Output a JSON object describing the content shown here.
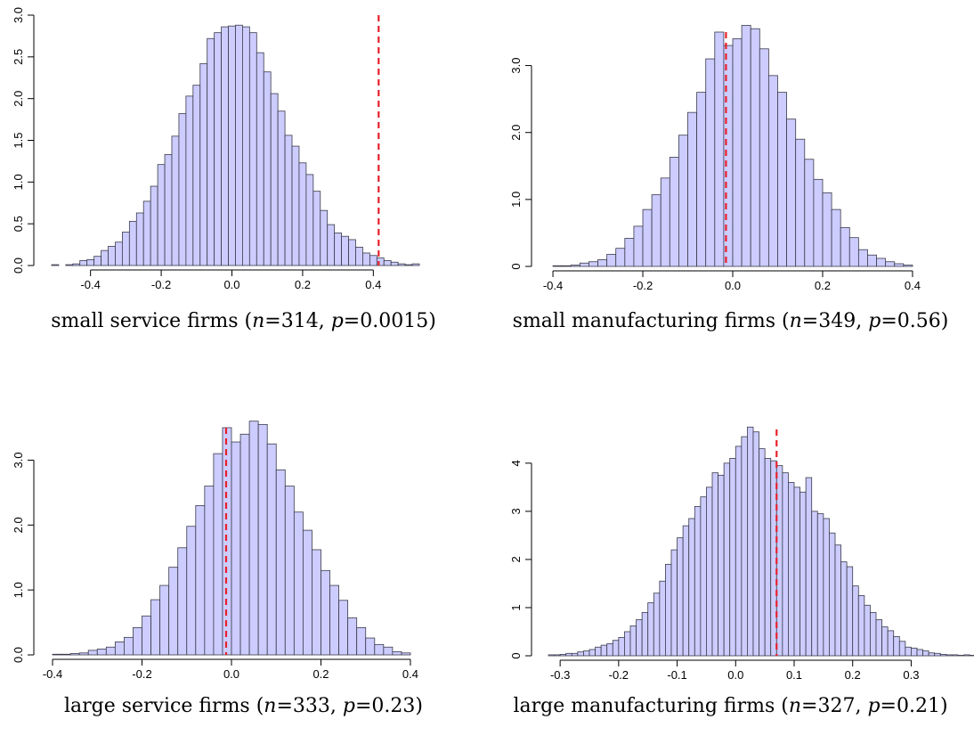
{
  "chart_data": [
    {
      "type": "bar",
      "caption": {
        "prefix": "small service firms (",
        "n_var": "n",
        "n_eq": "=314, ",
        "p_var": "p",
        "p_eq": "=0.0015)"
      },
      "bin_start": -0.51,
      "bin_width": 0.02,
      "densities": [
        0.01,
        0.0,
        0.01,
        0.02,
        0.06,
        0.07,
        0.11,
        0.18,
        0.23,
        0.28,
        0.4,
        0.53,
        0.63,
        0.77,
        0.95,
        1.21,
        1.33,
        1.55,
        1.82,
        2.03,
        2.16,
        2.42,
        2.72,
        2.79,
        2.86,
        2.87,
        2.88,
        2.86,
        2.79,
        2.55,
        2.32,
        2.06,
        1.85,
        1.56,
        1.43,
        1.23,
        1.09,
        0.89,
        0.66,
        0.49,
        0.39,
        0.35,
        0.31,
        0.22,
        0.15,
        0.12,
        0.09,
        0.06,
        0.04,
        0.02,
        0.01,
        0.02
      ],
      "reference_x": 0.415,
      "xlim": [
        -0.52,
        0.52
      ],
      "ylim": [
        0,
        3.0
      ],
      "x_ticks": [
        -0.4,
        -0.2,
        0.0,
        0.2,
        0.4
      ],
      "x_tick_labels": [
        "-0.4",
        "-0.2",
        "0.0",
        "0.2",
        "0.4"
      ],
      "y_ticks": [
        0,
        0.5,
        1.0,
        1.5,
        2.0,
        2.5,
        3.0
      ],
      "y_tick_labels": [
        "0.0",
        "0.5",
        "1.0",
        "1.5",
        "2.0",
        "2.5",
        "3.0"
      ]
    },
    {
      "type": "bar",
      "caption": {
        "prefix": "small manufacturing firms (",
        "n_var": "n",
        "n_eq": "=349, ",
        "p_var": "p",
        "p_eq": "=0.56)"
      },
      "bin_start": -0.4,
      "bin_width": 0.02,
      "densities": [
        0.01,
        0.01,
        0.02,
        0.05,
        0.07,
        0.1,
        0.18,
        0.27,
        0.42,
        0.6,
        0.85,
        1.07,
        1.32,
        1.63,
        1.96,
        2.3,
        2.6,
        3.1,
        3.5,
        3.3,
        3.4,
        3.6,
        3.55,
        3.25,
        2.85,
        2.6,
        2.2,
        1.9,
        1.6,
        1.3,
        1.1,
        0.85,
        0.58,
        0.43,
        0.25,
        0.17,
        0.12,
        0.07,
        0.04,
        0.02
      ],
      "reference_x": -0.015,
      "xlim": [
        -0.41,
        0.41
      ],
      "ylim": [
        0,
        3.5
      ],
      "x_ticks": [
        -0.4,
        -0.2,
        0.0,
        0.2,
        0.4
      ],
      "x_tick_labels": [
        "-0.4",
        "-0.2",
        "0.0",
        "0.2",
        "0.4"
      ],
      "y_ticks": [
        0,
        1.0,
        2.0,
        3.0
      ],
      "y_tick_labels": [
        "0",
        "1.0",
        "2.0",
        "3.0"
      ]
    },
    {
      "type": "bar",
      "caption": {
        "prefix": "large service firms (",
        "n_var": "n",
        "n_eq": "=333, ",
        "p_var": "p",
        "p_eq": "=0.23)"
      },
      "bin_start": -0.4,
      "bin_width": 0.02,
      "densities": [
        0.01,
        0.01,
        0.02,
        0.03,
        0.07,
        0.09,
        0.12,
        0.2,
        0.27,
        0.42,
        0.6,
        0.85,
        1.07,
        1.35,
        1.65,
        1.98,
        2.3,
        2.6,
        3.1,
        3.5,
        3.28,
        3.4,
        3.6,
        3.55,
        3.25,
        2.85,
        2.6,
        2.2,
        1.92,
        1.62,
        1.3,
        1.07,
        0.84,
        0.57,
        0.42,
        0.26,
        0.16,
        0.12,
        0.05,
        0.03
      ],
      "reference_x": -0.012,
      "xlim": [
        -0.41,
        0.41
      ],
      "ylim": [
        0,
        3.5
      ],
      "x_ticks": [
        -0.4,
        -0.2,
        0.0,
        0.2,
        0.4
      ],
      "x_tick_labels": [
        "-0.4",
        "-0.2",
        "0.0",
        "0.2",
        "0.4"
      ],
      "y_ticks": [
        0,
        1.0,
        2.0,
        3.0
      ],
      "y_tick_labels": [
        "0.0",
        "1.0",
        "2.0",
        "3.0"
      ]
    },
    {
      "type": "bar",
      "caption": {
        "prefix": "large manufacturing firms (",
        "n_var": "n",
        "n_eq": "=327, ",
        "p_var": "p",
        "p_eq": "=0.21)"
      },
      "bin_start": -0.32,
      "bin_width": 0.01,
      "densities": [
        0.02,
        0.02,
        0.03,
        0.05,
        0.05,
        0.08,
        0.1,
        0.13,
        0.18,
        0.22,
        0.25,
        0.32,
        0.38,
        0.5,
        0.62,
        0.75,
        0.9,
        1.1,
        1.3,
        1.55,
        1.9,
        2.2,
        2.45,
        2.7,
        2.85,
        3.1,
        3.3,
        3.5,
        3.8,
        3.75,
        4.0,
        4.1,
        4.35,
        4.55,
        4.75,
        4.65,
        4.3,
        4.1,
        4.05,
        3.95,
        3.8,
        3.6,
        3.5,
        3.4,
        3.7,
        3.0,
        2.95,
        2.85,
        2.55,
        2.3,
        1.95,
        1.85,
        1.45,
        1.25,
        1.05,
        0.9,
        0.75,
        0.6,
        0.52,
        0.4,
        0.3,
        0.18,
        0.16,
        0.13,
        0.1,
        0.06,
        0.05,
        0.03,
        0.02,
        0.02,
        0.01,
        0.02,
        0.01
      ],
      "reference_x": 0.07,
      "xlim": [
        -0.32,
        0.31
      ],
      "ylim": [
        0,
        4.7
      ],
      "x_ticks": [
        -0.3,
        -0.2,
        -0.1,
        0.0,
        0.1,
        0.2,
        0.3
      ],
      "x_tick_labels": [
        "-0.3",
        "-0.2",
        "-0.1",
        "0.0",
        "0.1",
        "0.2",
        "0.3"
      ],
      "y_ticks": [
        0,
        1,
        2,
        3,
        4
      ],
      "y_tick_labels": [
        "0",
        "1",
        "2",
        "3",
        "4"
      ]
    }
  ]
}
